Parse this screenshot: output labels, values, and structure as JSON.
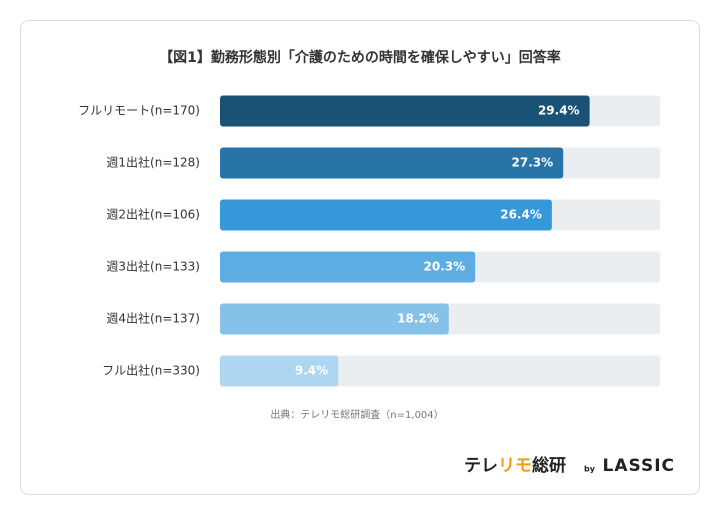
{
  "chart_data": {
    "type": "hbar",
    "title": "【図1】勤務形態別「介護のための時間を確保しやすい」回答率",
    "categories": [
      "フルリモート(n=170)",
      "週1出社(n=128)",
      "週2出社(n=106)",
      "週3出社(n=133)",
      "週4出社(n=137)",
      "フル出社(n=330)"
    ],
    "values": [
      29.4,
      27.3,
      26.4,
      20.3,
      18.2,
      9.4
    ],
    "value_labels": [
      "29.4%",
      "27.3%",
      "26.4%",
      "20.3%",
      "18.2%",
      "9.4%"
    ],
    "colors": [
      "#1a5276",
      "#2874a6",
      "#3498db",
      "#5dade2",
      "#85c1e9",
      "#aed6f1"
    ],
    "track_color": "#ebeef0",
    "xlim": [
      0,
      35
    ],
    "source": "出典：テレリモ総研調査（n=1,004）",
    "logo": {
      "brand": [
        "テレ",
        "リモ",
        "総研"
      ],
      "by": "by",
      "company": "LASSIC"
    }
  }
}
